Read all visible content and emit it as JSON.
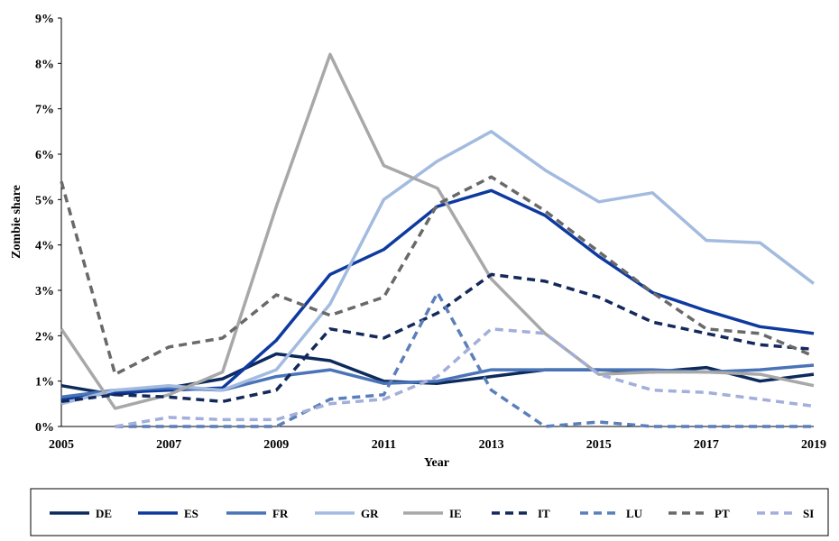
{
  "chart_data": {
    "type": "line",
    "title": "",
    "xlabel": "Year",
    "ylabel": "Zombie share",
    "xlim": [
      2005,
      2019
    ],
    "ylim": [
      0,
      9
    ],
    "x_ticks": [
      "2005",
      "2007",
      "2009",
      "2011",
      "2013",
      "2015",
      "2017",
      "2019"
    ],
    "y_ticks": [
      "0%",
      "1%",
      "2%",
      "3%",
      "4%",
      "5%",
      "6%",
      "7%",
      "8%",
      "9%"
    ],
    "grid": false,
    "legend_position": "bottom",
    "x": [
      2005,
      2006,
      2007,
      2008,
      2009,
      2010,
      2011,
      2012,
      2013,
      2014,
      2015,
      2016,
      2017,
      2018,
      2019
    ],
    "series": [
      {
        "name": "DE",
        "color": "#0d2a5c",
        "dash": "solid",
        "values": [
          0.9,
          0.7,
          0.85,
          1.05,
          1.6,
          1.45,
          1.0,
          0.95,
          1.1,
          1.25,
          1.25,
          1.2,
          1.3,
          1.0,
          1.15
        ]
      },
      {
        "name": "ES",
        "color": "#0e3aa0",
        "dash": "solid",
        "values": [
          0.6,
          0.75,
          0.8,
          0.85,
          1.9,
          3.35,
          3.9,
          4.85,
          5.2,
          4.65,
          3.75,
          2.95,
          2.55,
          2.2,
          2.05
        ]
      },
      {
        "name": "FR",
        "color": "#4a74b8",
        "dash": "solid",
        "values": [
          0.65,
          0.8,
          0.85,
          0.8,
          1.1,
          1.25,
          0.95,
          1.0,
          1.25,
          1.25,
          1.25,
          1.25,
          1.2,
          1.25,
          1.35
        ]
      },
      {
        "name": "GR",
        "color": "#a3bbdf",
        "dash": "solid",
        "values": [
          0.5,
          0.8,
          0.9,
          0.8,
          1.25,
          2.7,
          5.0,
          5.85,
          6.5,
          5.65,
          4.95,
          5.15,
          4.1,
          4.05,
          3.15
        ]
      },
      {
        "name": "IE",
        "color": "#a8a8a8",
        "dash": "solid",
        "values": [
          2.15,
          0.4,
          0.7,
          1.2,
          4.85,
          8.2,
          5.75,
          5.25,
          3.25,
          2.05,
          1.15,
          1.2,
          1.2,
          1.15,
          0.9
        ]
      },
      {
        "name": "IT",
        "color": "#14295a",
        "dash": "dash",
        "values": [
          0.55,
          0.7,
          0.65,
          0.55,
          0.8,
          2.15,
          1.95,
          2.5,
          3.35,
          3.2,
          2.85,
          2.3,
          2.05,
          1.8,
          1.7
        ]
      },
      {
        "name": "LU",
        "color": "#5b7fba",
        "dash": "dash",
        "values": [
          null,
          0.0,
          0.0,
          0.0,
          0.0,
          0.6,
          0.7,
          2.95,
          0.8,
          0.0,
          0.1,
          0.0,
          0.0,
          0.0,
          0.0
        ]
      },
      {
        "name": "PT",
        "color": "#696969",
        "dash": "dash",
        "values": [
          5.4,
          1.15,
          1.75,
          1.95,
          2.9,
          2.45,
          2.85,
          4.9,
          5.5,
          4.75,
          3.85,
          2.95,
          2.15,
          2.05,
          1.55
        ]
      },
      {
        "name": "SI",
        "color": "#a3aedb",
        "dash": "dash",
        "values": [
          null,
          0.0,
          0.2,
          0.15,
          0.15,
          0.5,
          0.6,
          1.1,
          2.15,
          2.05,
          1.15,
          0.8,
          0.75,
          0.6,
          0.45
        ]
      }
    ]
  }
}
